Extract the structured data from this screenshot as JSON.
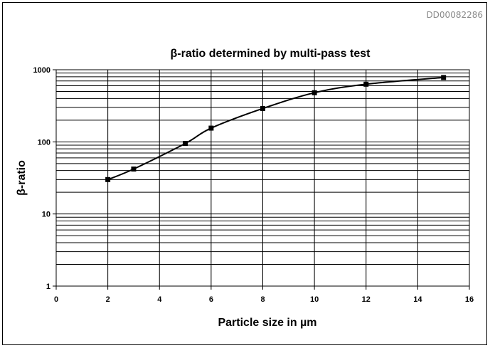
{
  "document_id": "DD00082286",
  "chart_data": {
    "type": "line",
    "title": "β-ratio determined by multi-pass test",
    "xlabel": "Particle size in µm",
    "ylabel": "β-ratio",
    "xlim": [
      0,
      16
    ],
    "ylim": [
      1,
      1000
    ],
    "y_scale": "log",
    "grid": true,
    "x_ticks": [
      "0",
      "2",
      "4",
      "6",
      "8",
      "10",
      "12",
      "14",
      "16"
    ],
    "y_ticks": [
      "1",
      "10",
      "100",
      "1000"
    ],
    "series": [
      {
        "marker": "square",
        "x": [
          2,
          3,
          5,
          6,
          8,
          10,
          12,
          15
        ],
        "y": [
          30,
          42,
          95,
          155,
          290,
          480,
          630,
          780
        ]
      }
    ]
  }
}
